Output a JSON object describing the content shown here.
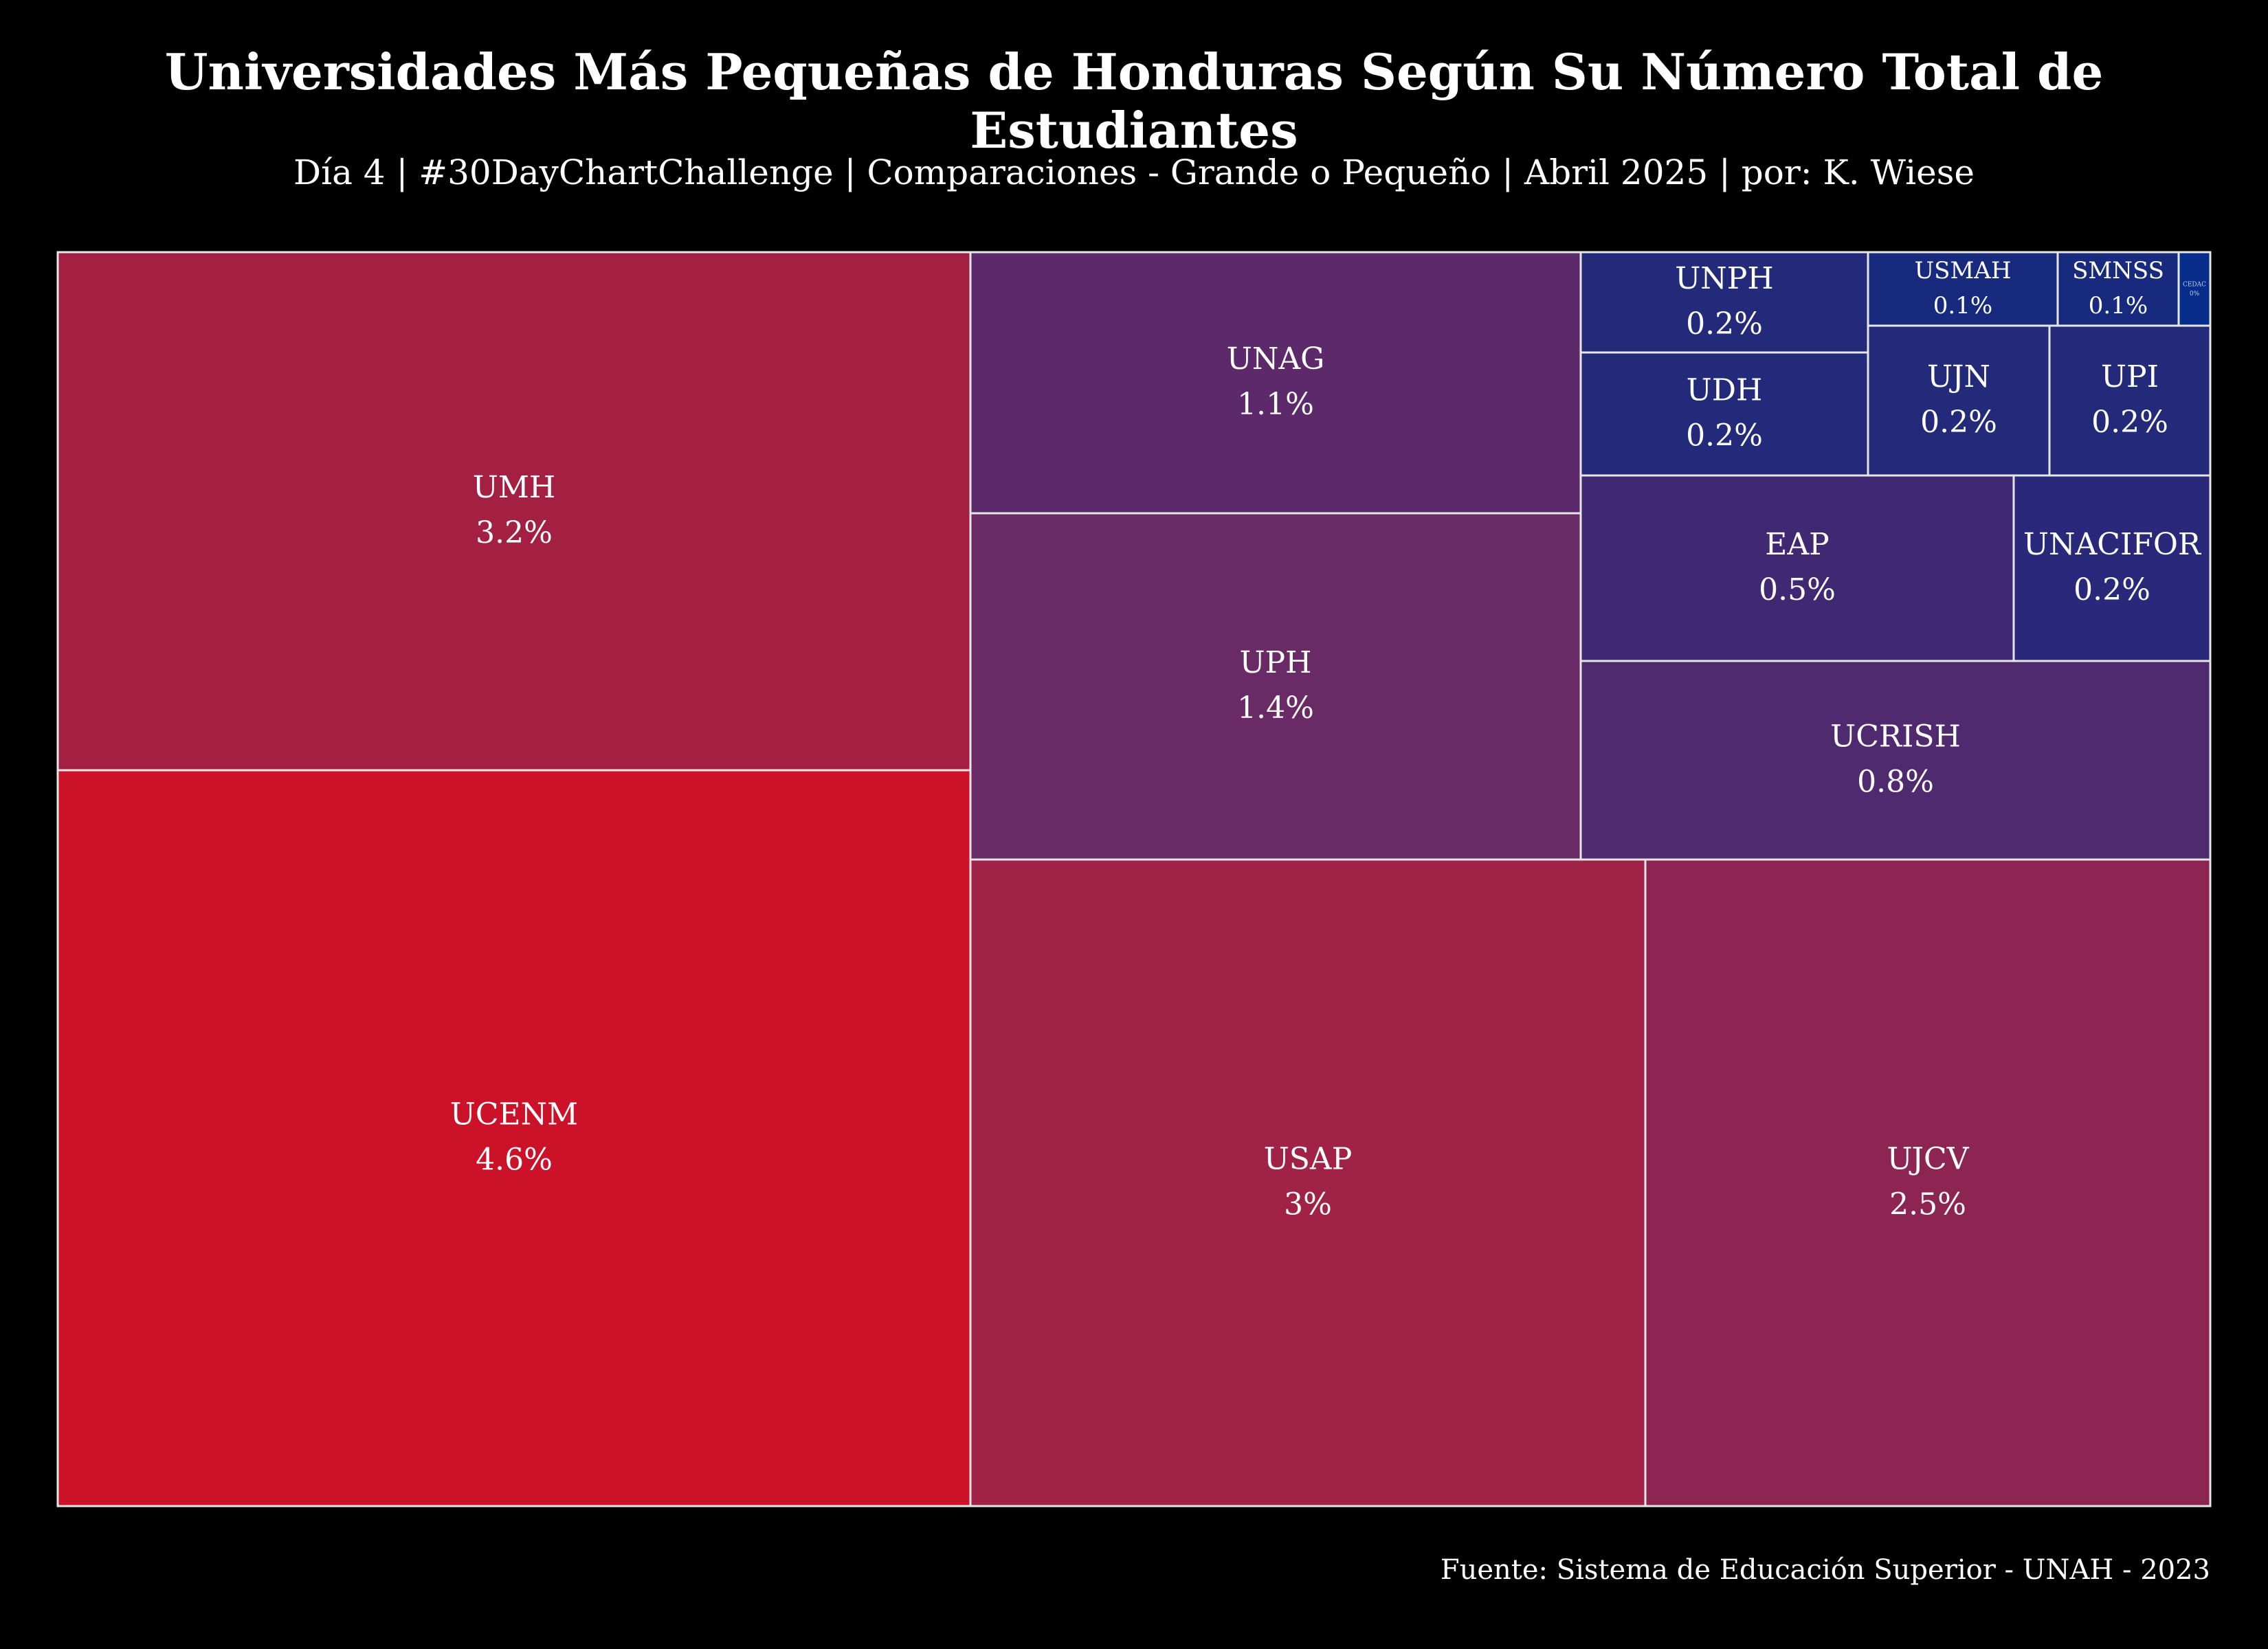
{
  "title": "Universidades Más Pequeñas de Honduras Según Su Número Total de Estudiantes",
  "subtitle": "Día 4 | #30DayChartChallenge | Comparaciones - Grande o Pequeño | Abril 2025 | por: K. Wiese",
  "source": "Fuente: Sistema de Educación Superior - UNAH - 2023",
  "colors": {
    "background": "#000000",
    "text": "#ffffff",
    "tile_border": "#e6e6e6",
    "high": "#cc1229",
    "low": "#072d8a"
  },
  "chart_data": {
    "type": "treemap",
    "unit": "%",
    "items": [
      {
        "name": "UCENM",
        "label": "4.6%",
        "value": 4.6,
        "color": "#cc1229"
      },
      {
        "name": "UMH",
        "label": "3.2%",
        "value": 3.2,
        "color": "#a32043"
      },
      {
        "name": "USAP",
        "label": "3%",
        "value": 3.0,
        "color": "#a02247"
      },
      {
        "name": "UJCV",
        "label": "2.5%",
        "value": 2.5,
        "color": "#8c2552"
      },
      {
        "name": "UPH",
        "label": "1.4%",
        "value": 1.4,
        "color": "#6a2a65"
      },
      {
        "name": "UNAG",
        "label": "1.1%",
        "value": 1.1,
        "color": "#5c2a6b"
      },
      {
        "name": "UCRISH",
        "label": "0.8%",
        "value": 0.8,
        "color": "#4f2a6f"
      },
      {
        "name": "EAP",
        "label": "0.5%",
        "value": 0.5,
        "color": "#402872"
      },
      {
        "name": "UNACIFOR",
        "label": "0.2%",
        "value": 0.2,
        "color": "#29287a"
      },
      {
        "name": "UNPH",
        "label": "0.2%",
        "value": 0.2,
        "color": "#242a7a"
      },
      {
        "name": "UDH",
        "label": "0.2%",
        "value": 0.2,
        "color": "#242a7a"
      },
      {
        "name": "UJN",
        "label": "0.2%",
        "value": 0.2,
        "color": "#242a7a"
      },
      {
        "name": "UPI",
        "label": "0.2%",
        "value": 0.2,
        "color": "#242a7a"
      },
      {
        "name": "USMAH",
        "label": "0.1%",
        "value": 0.1,
        "color": "#172a7e"
      },
      {
        "name": "SMNSS",
        "label": "0.1%",
        "value": 0.1,
        "color": "#172a7e"
      },
      {
        "name": "CEDAC",
        "label": "0%",
        "value": 0.0,
        "color": "#072d8a"
      }
    ]
  }
}
